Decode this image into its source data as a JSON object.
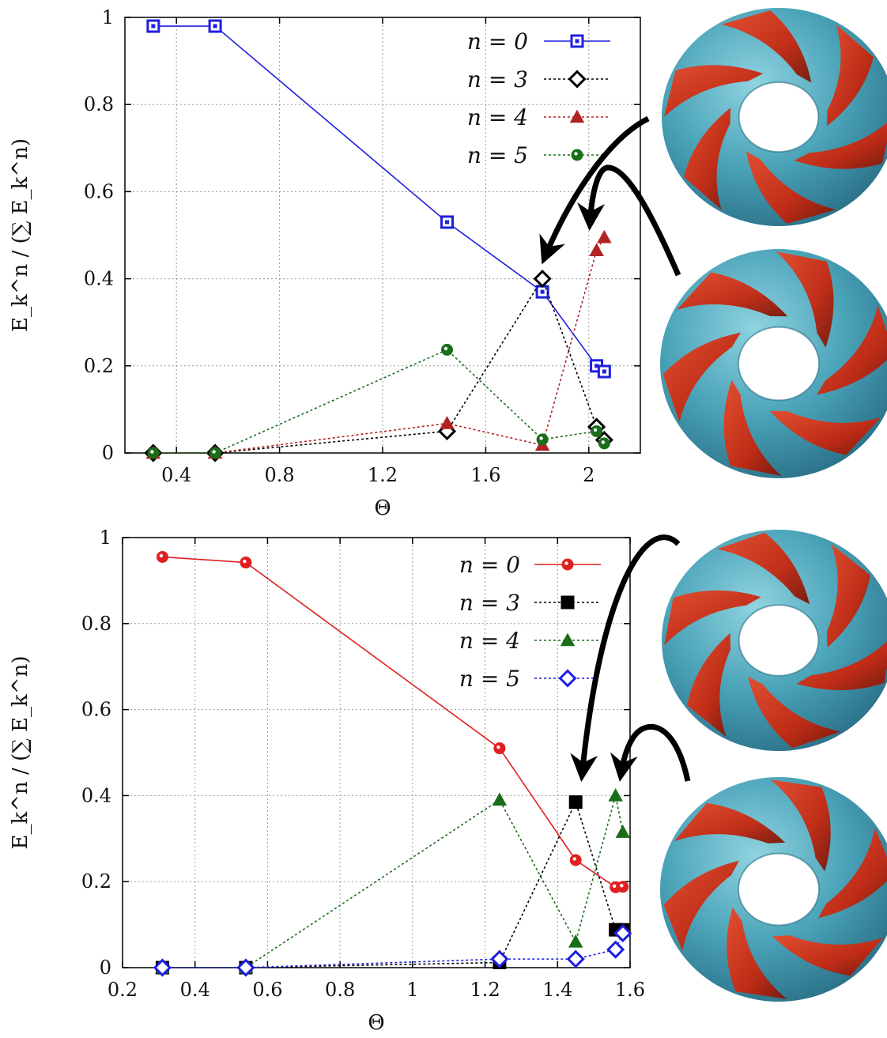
{
  "chart_data": [
    {
      "type": "line",
      "xlabel": "Θ",
      "ylabel": "E_k^n / (∑ E_k^n)",
      "xlim": [
        0.2,
        2.2
      ],
      "ylim": [
        0,
        1
      ],
      "xticks": [
        "0.4",
        "0.8",
        "1.2",
        "1.6",
        "2"
      ],
      "yticks": [
        "0",
        "0.2",
        "0.4",
        "0.6",
        "0.8",
        "1"
      ],
      "grid": true,
      "legend_position": "top-right",
      "series": [
        {
          "name": "n = 0",
          "color": "#1f1fe0",
          "marker": "square-dot",
          "dash": "none",
          "x": [
            0.31,
            0.55,
            1.45,
            1.82,
            2.03,
            2.06
          ],
          "y": [
            0.98,
            0.98,
            0.53,
            0.37,
            0.2,
            0.187
          ]
        },
        {
          "name": "n = 3",
          "color": "#000000",
          "marker": "diamond",
          "dash": "dotted",
          "x": [
            0.31,
            0.55,
            1.45,
            1.82,
            2.03,
            2.06
          ],
          "y": [
            0.0,
            0.0,
            0.05,
            0.4,
            0.06,
            0.03
          ]
        },
        {
          "name": "n = 4",
          "color": "#b22222",
          "marker": "triangle",
          "dash": "dotted",
          "x": [
            0.31,
            0.55,
            1.45,
            1.82,
            2.03,
            2.06
          ],
          "y": [
            0.0,
            0.0,
            0.068,
            0.018,
            0.465,
            0.495
          ]
        },
        {
          "name": "n = 5",
          "color": "#1a6e1a",
          "marker": "circle-dot",
          "dash": "dotted",
          "x": [
            0.31,
            0.55,
            1.45,
            1.82,
            2.03,
            2.06
          ],
          "y": [
            0.0,
            0.0,
            0.237,
            0.031,
            0.05,
            0.022
          ]
        }
      ]
    },
    {
      "type": "line",
      "xlabel": "Θ",
      "ylabel": "E_k^n / (∑ E_k^n)",
      "xlim": [
        0.2,
        1.6
      ],
      "ylim": [
        0,
        1
      ],
      "xticks": [
        "0.2",
        "0.4",
        "0.6",
        "0.8",
        "1",
        "1.2",
        "1.4",
        "1.6"
      ],
      "yticks": [
        "0",
        "0.2",
        "0.4",
        "0.6",
        "0.8",
        "1"
      ],
      "grid": true,
      "legend_position": "top-right",
      "series": [
        {
          "name": "n = 0",
          "color": "#e02020",
          "marker": "circle-dot",
          "dash": "none",
          "x": [
            0.31,
            0.54,
            1.24,
            1.45,
            1.56,
            1.58
          ],
          "y": [
            0.955,
            0.942,
            0.51,
            0.25,
            0.187,
            0.188
          ]
        },
        {
          "name": "n = 3",
          "color": "#000000",
          "marker": "square",
          "dash": "dotted",
          "x": [
            0.31,
            0.54,
            1.24,
            1.45,
            1.56,
            1.58
          ],
          "y": [
            0.0,
            0.0,
            0.012,
            0.385,
            0.088,
            0.088
          ]
        },
        {
          "name": "n = 4",
          "color": "#1a6e1a",
          "marker": "triangle",
          "dash": "dotted",
          "x": [
            0.31,
            0.54,
            1.24,
            1.45,
            1.56,
            1.58
          ],
          "y": [
            0.0,
            0.0,
            0.39,
            0.06,
            0.4,
            0.315
          ]
        },
        {
          "name": "n = 5",
          "color": "#1f1fe0",
          "marker": "diamond",
          "dash": "dotted",
          "x": [
            0.31,
            0.54,
            1.24,
            1.45,
            1.56,
            1.58
          ],
          "y": [
            0.0,
            0.0,
            0.02,
            0.02,
            0.042,
            0.08
          ]
        }
      ]
    }
  ],
  "figure": {
    "arrow_color": "#000000",
    "torus_colors": {
      "blue": "#4aa3b8",
      "red": "#cc2a12"
    },
    "insets": [
      {
        "name": "torus-image-1"
      },
      {
        "name": "torus-image-2"
      },
      {
        "name": "torus-image-3"
      },
      {
        "name": "torus-image-4"
      }
    ]
  }
}
